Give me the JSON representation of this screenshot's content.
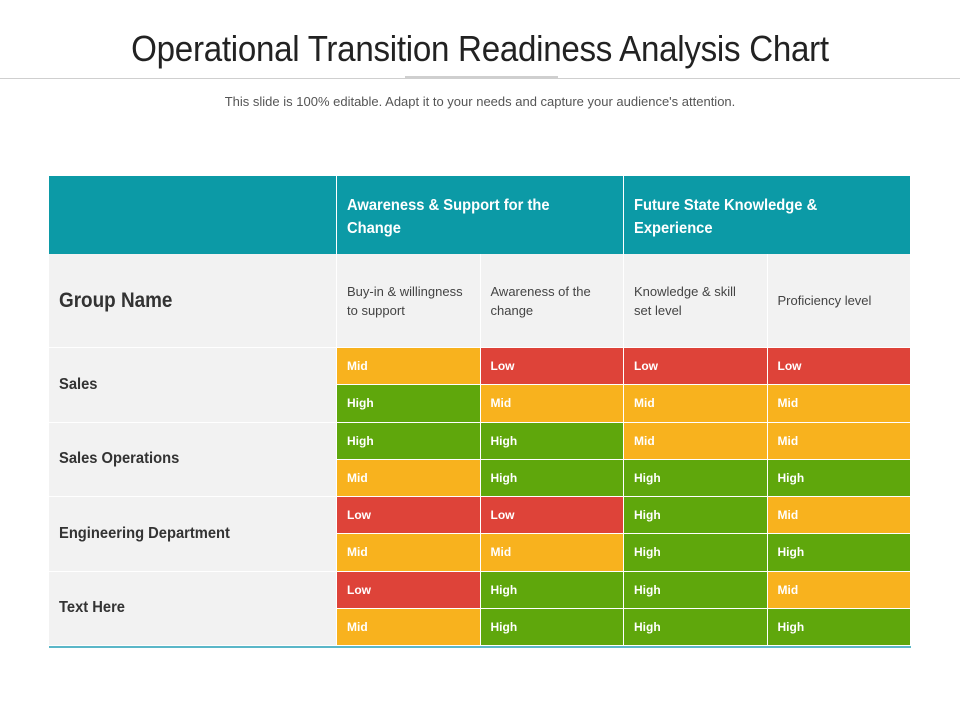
{
  "title": "Operational Transition  Readiness Analysis Chart",
  "subtitle": "This slide is 100% editable. Adapt it to your needs and capture your audience's attention.",
  "colors": {
    "teal": "#0c9aa6",
    "low": "#de4339",
    "mid": "#f8b21e",
    "high": "#5fa70c",
    "panel": "#f2f2f2"
  },
  "table": {
    "header_groups": [
      "Awareness & Support for the Change",
      "Future State Knowledge & Experience"
    ],
    "group_label": "Group Name",
    "columns": [
      "Buy-in & willingness to support",
      "Awareness of the change",
      "Knowledge & skill set level",
      "Proficiency level"
    ],
    "groups": [
      {
        "name": "Sales",
        "rows": [
          [
            "Mid",
            "Low",
            "Low",
            "Low"
          ],
          [
            "High",
            "Mid",
            "Mid",
            "Mid"
          ]
        ]
      },
      {
        "name": "Sales Operations",
        "rows": [
          [
            "High",
            "High",
            "Mid",
            "Mid"
          ],
          [
            "Mid",
            "High",
            "High",
            "High"
          ]
        ]
      },
      {
        "name": "Engineering Department",
        "rows": [
          [
            "Low",
            "Low",
            "High",
            "Mid"
          ],
          [
            "Mid",
            "Mid",
            "High",
            "High"
          ]
        ]
      },
      {
        "name": "Text Here",
        "rows": [
          [
            "Low",
            "High",
            "High",
            "Mid"
          ],
          [
            "Mid",
            "High",
            "High",
            "High"
          ]
        ]
      }
    ]
  }
}
